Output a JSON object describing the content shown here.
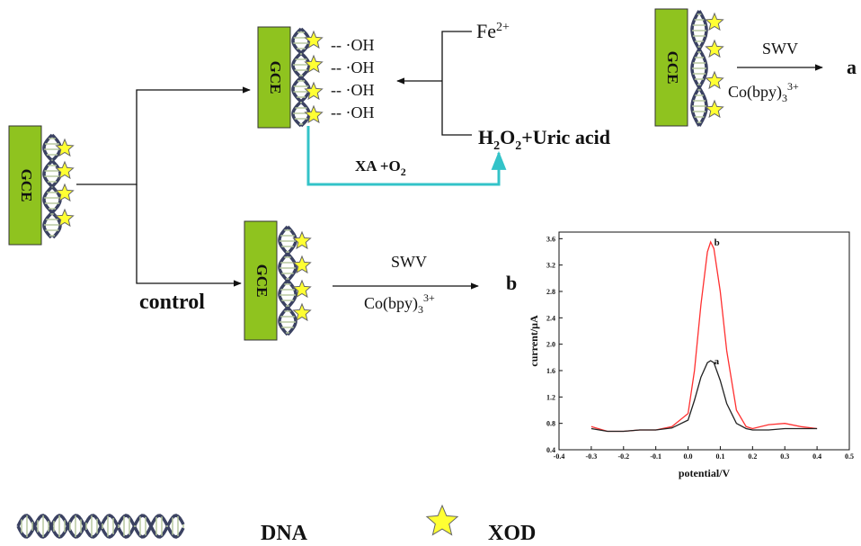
{
  "diagram": {
    "electrodes": [
      "GCE",
      "GCE",
      "GCE",
      "GCE"
    ],
    "radicals": [
      "-- ·OH",
      "-- ·OH",
      "-- ·OH",
      "-- ·OH"
    ],
    "fe": [
      "Fe",
      "2+"
    ],
    "h2o2": [
      "H",
      "2",
      "O",
      "2",
      "+Uric acid"
    ],
    "xa": [
      "XA +O",
      "2"
    ],
    "top_path": {
      "method": "SWV",
      "reagent": [
        "Co(bpy)",
        "3",
        "3+"
      ],
      "result": "a"
    },
    "control_path": {
      "label": "control",
      "method": "SWV",
      "reagent": [
        "Co(bpy)",
        "3",
        "3+"
      ],
      "result": "b"
    },
    "legend": [
      "DNA",
      "XOD"
    ]
  },
  "chart_data": {
    "type": "line",
    "x_label": "potential/V",
    "y_label": "current/μA",
    "x": [
      -0.3,
      -0.25,
      -0.2,
      -0.15,
      -0.1,
      -0.05,
      0,
      0.02,
      0.04,
      0.06,
      0.07,
      0.08,
      0.1,
      0.12,
      0.15,
      0.18,
      0.2,
      0.25,
      0.3,
      0.35,
      0.4
    ],
    "series": [
      {
        "name": "b",
        "color": "#ff3030",
        "values": [
          0.75,
          0.68,
          0.68,
          0.7,
          0.7,
          0.75,
          0.95,
          1.6,
          2.6,
          3.4,
          3.55,
          3.45,
          2.8,
          1.9,
          1.0,
          0.75,
          0.72,
          0.78,
          0.8,
          0.75,
          0.72
        ]
      },
      {
        "name": "a",
        "color": "#222222",
        "values": [
          0.72,
          0.68,
          0.68,
          0.7,
          0.7,
          0.73,
          0.85,
          1.15,
          1.5,
          1.72,
          1.75,
          1.72,
          1.45,
          1.1,
          0.8,
          0.72,
          0.7,
          0.7,
          0.72,
          0.72,
          0.72
        ]
      }
    ],
    "xlim": [
      -0.4,
      0.5
    ],
    "ylim": [
      0.4,
      3.7
    ],
    "xticks": [
      -0.4,
      -0.3,
      -0.2,
      -0.1,
      {
        "value": 0,
        "label": "0.0"
      },
      0.1,
      0.2,
      0.3,
      0.4,
      0.5
    ],
    "yticks": [
      0.4,
      0.8,
      1.2,
      1.6,
      {
        "value": 2,
        "label": "2.0"
      },
      2.4,
      2.8,
      3.2,
      3.6
    ],
    "grid": false
  }
}
